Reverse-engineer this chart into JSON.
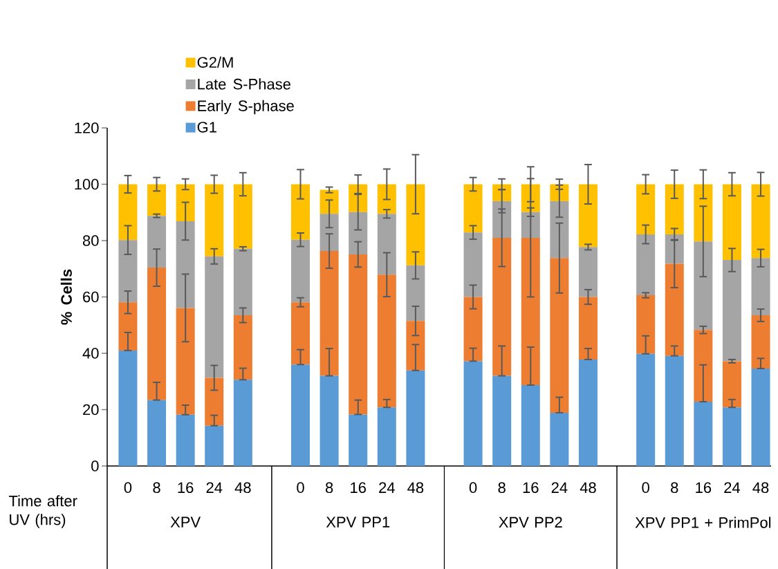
{
  "chart_data": {
    "type": "bar",
    "stacked": true,
    "ylabel": "% Cells",
    "xlabel": "Time after UV (hrs)",
    "categories": [
      "0",
      "8",
      "16",
      "24",
      "48",
      null,
      "0",
      "8",
      "16",
      "24",
      "48",
      null,
      "0",
      "8",
      "16",
      "24",
      "48",
      null,
      "0",
      "8",
      "16",
      "24",
      "48"
    ],
    "annotations": [
      "XPV",
      "XPV PP1",
      "XPV PP2",
      "XPV PP1 + PrimPol"
    ],
    "ylim": [
      0,
      120
    ],
    "yticks": [
      0,
      20,
      40,
      60,
      80,
      100,
      120
    ],
    "legend": "top left",
    "series": [
      {
        "name": "G1",
        "color": "#5b9bd5",
        "values": [
          41.0,
          23.4,
          18.2,
          14.3,
          30.6,
          null,
          36.0,
          32.0,
          18.3,
          20.8,
          33.9,
          null,
          37.2,
          32.0,
          28.7,
          18.9,
          37.8,
          null,
          39.8,
          39.1,
          22.8,
          20.8,
          34.6
        ],
        "errors": [
          [
            41.0,
            47.4
          ],
          [
            23.4,
            29.7
          ],
          [
            18.2,
            21.6
          ],
          [
            14.3,
            18.0
          ],
          [
            30.6,
            34.7
          ],
          null,
          [
            36.0,
            41.3
          ],
          [
            32.0,
            41.7
          ],
          [
            18.3,
            23.4
          ],
          [
            20.8,
            23.6
          ],
          [
            33.9,
            43.1
          ],
          null,
          [
            37.2,
            41.8
          ],
          [
            32.0,
            42.6
          ],
          [
            28.7,
            42.2
          ],
          [
            18.9,
            24.4
          ],
          [
            37.8,
            41.7
          ],
          null,
          [
            39.8,
            46.2
          ],
          [
            39.1,
            42.6
          ],
          [
            22.8,
            35.9
          ],
          [
            20.8,
            23.6
          ],
          [
            34.6,
            38.2
          ]
        ]
      },
      {
        "name": "Early S-phase",
        "color": "#ed7d31",
        "values": [
          17.1,
          47.0,
          37.9,
          17.0,
          22.9,
          null,
          22.1,
          44.3,
          56.8,
          47.1,
          17.6,
          null,
          22.8,
          49.0,
          52.3,
          54.9,
          22.2,
          null,
          20.8,
          32.7,
          25.5,
          16.4,
          18.9
        ],
        "errors": [
          4.0,
          6.6,
          12.0,
          4.4,
          2.6,
          null,
          1.6,
          6.1,
          4.5,
          7.8,
          5.2,
          null,
          4.2,
          10.2,
          21.0,
          12.4,
          2.6,
          null,
          0.9,
          8.5,
          1.3,
          0.6,
          2.2
        ]
      },
      {
        "name": "Late S-Phase",
        "color": "#a5a5a5",
        "values": [
          22.1,
          18.4,
          30.8,
          43.1,
          23.6,
          null,
          22.2,
          13.2,
          15.0,
          21.6,
          19.7,
          null,
          22.9,
          13.0,
          9.1,
          20.2,
          17.7,
          null,
          21.6,
          10.4,
          31.4,
          35.9,
          20.3
        ],
        "errors": [
          5.1,
          0.6,
          6.7,
          2.7,
          0.7,
          null,
          2.4,
          4.9,
          6.3,
          1.5,
          4.8,
          null,
          2.4,
          4.1,
          1.5,
          5.7,
          1.0,
          null,
          3.3,
          2.1,
          12.5,
          4.1,
          3.1
        ]
      },
      {
        "name": "G2/M",
        "color": "#ffc000",
        "values": [
          19.8,
          11.2,
          13.1,
          25.6,
          22.9,
          null,
          19.7,
          8.5,
          9.9,
          10.5,
          28.8,
          null,
          17.1,
          6.0,
          9.9,
          6.0,
          22.3,
          null,
          17.8,
          17.8,
          20.3,
          26.9,
          26.2
        ],
        "errors": [
          3.1,
          2.4,
          1.9,
          3.2,
          4.1,
          null,
          5.2,
          1.0,
          3.3,
          5.4,
          10.5,
          null,
          2.4,
          1.9,
          6.2,
          1.8,
          7.0,
          null,
          3.4,
          5.0,
          5.1,
          4.1,
          4.2
        ]
      }
    ]
  }
}
